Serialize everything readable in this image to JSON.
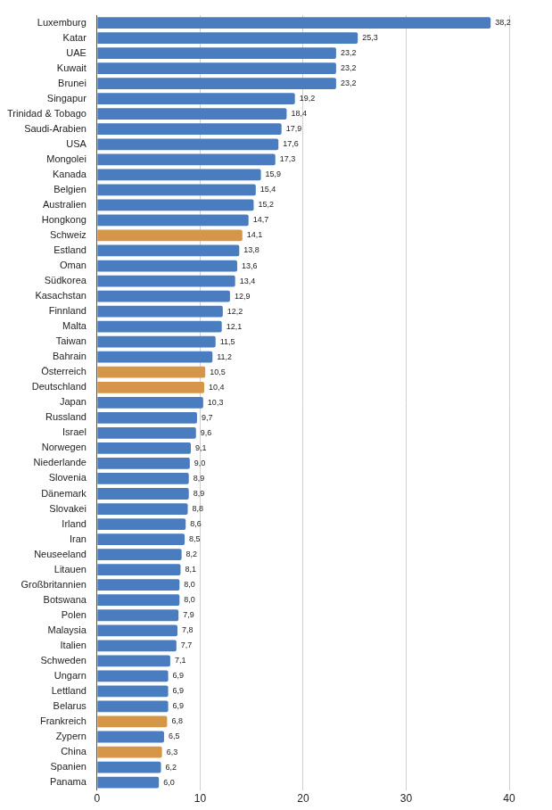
{
  "chart_data": {
    "type": "bar",
    "orientation": "horizontal",
    "categories": [
      "Luxemburg",
      "Katar",
      "UAE",
      "Kuwait",
      "Brunei",
      "Singapur",
      "Trinidad & Tobago",
      "Saudi-Arabien",
      "USA",
      "Mongolei",
      "Kanada",
      "Belgien",
      "Australien",
      "Hongkong",
      "Schweiz",
      "Estland",
      "Oman",
      "Südkorea",
      "Kasachstan",
      "Finnland",
      "Malta",
      "Taiwan",
      "Bahrain",
      "Österreich",
      "Deutschland",
      "Japan",
      "Russland",
      "Israel",
      "Norwegen",
      "Niederlande",
      "Slovenia",
      "Dänemark",
      "Slovakei",
      "Irland",
      "Iran",
      "Neuseeland",
      "Litauen",
      "Großbritannien",
      "Botswana",
      "Polen",
      "Malaysia",
      "Italien",
      "Schweden",
      "Ungarn",
      "Lettland",
      "Belarus",
      "Frankreich",
      "Zypern",
      "China",
      "Spanien",
      "Panama"
    ],
    "values": [
      38.2,
      25.3,
      23.2,
      23.2,
      23.2,
      19.2,
      18.4,
      17.9,
      17.6,
      17.3,
      15.9,
      15.4,
      15.2,
      14.7,
      14.1,
      13.8,
      13.6,
      13.4,
      12.9,
      12.2,
      12.1,
      11.5,
      11.2,
      10.5,
      10.4,
      10.3,
      9.7,
      9.6,
      9.1,
      9.0,
      8.9,
      8.9,
      8.8,
      8.6,
      8.5,
      8.2,
      8.1,
      8.0,
      8.0,
      7.9,
      7.8,
      7.7,
      7.1,
      6.9,
      6.9,
      6.9,
      6.8,
      6.5,
      6.3,
      6.2,
      6.0
    ],
    "value_labels": [
      "38,2",
      "25,3",
      "23,2",
      "23,2",
      "23,2",
      "19,2",
      "18,4",
      "17,9",
      "17,6",
      "17,3",
      "15,9",
      "15,4",
      "15,2",
      "14,7",
      "14,1",
      "13,8",
      "13,6",
      "13,4",
      "12,9",
      "12,2",
      "12,1",
      "11,5",
      "11,2",
      "10,5",
      "10,4",
      "10,3",
      "9,7",
      "9,6",
      "9,1",
      "9,0",
      "8,9",
      "8,9",
      "8,8",
      "8,6",
      "8,5",
      "8,2",
      "8,1",
      "8,0",
      "8,0",
      "7,9",
      "7,8",
      "7,7",
      "7,1",
      "6,9",
      "6,9",
      "6,9",
      "6,8",
      "6,5",
      "6,3",
      "6,2",
      "6,0"
    ],
    "colors": [
      "#4a7cc0",
      "#4a7cc0",
      "#4a7cc0",
      "#4a7cc0",
      "#4a7cc0",
      "#4a7cc0",
      "#4a7cc0",
      "#4a7cc0",
      "#4a7cc0",
      "#4a7cc0",
      "#4a7cc0",
      "#4a7cc0",
      "#4a7cc0",
      "#4a7cc0",
      "#d6964a",
      "#4a7cc0",
      "#4a7cc0",
      "#4a7cc0",
      "#4a7cc0",
      "#4a7cc0",
      "#4a7cc0",
      "#4a7cc0",
      "#4a7cc0",
      "#d6964a",
      "#d6964a",
      "#4a7cc0",
      "#4a7cc0",
      "#4a7cc0",
      "#4a7cc0",
      "#4a7cc0",
      "#4a7cc0",
      "#4a7cc0",
      "#4a7cc0",
      "#4a7cc0",
      "#4a7cc0",
      "#4a7cc0",
      "#4a7cc0",
      "#4a7cc0",
      "#4a7cc0",
      "#4a7cc0",
      "#4a7cc0",
      "#4a7cc0",
      "#4a7cc0",
      "#4a7cc0",
      "#4a7cc0",
      "#4a7cc0",
      "#d6964a",
      "#4a7cc0",
      "#d6964a",
      "#4a7cc0",
      "#4a7cc0"
    ],
    "xlim": [
      0,
      40
    ],
    "xticks": [
      0,
      10,
      20,
      30,
      40
    ],
    "grid": true,
    "data_labels": true
  }
}
